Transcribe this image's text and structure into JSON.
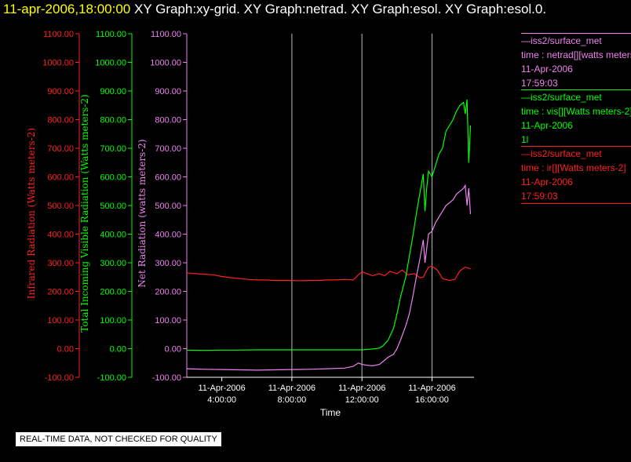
{
  "title": {
    "timestamp": "11-apr-2006,18:00:00",
    "graphs": "XY Graph:xy-grid.  XY Graph:netrad.  XY Graph:esol.  XY Graph:esol.0."
  },
  "colors": {
    "ir": "#ff2020",
    "vis": "#00ff00",
    "net": "#ee82ee",
    "axis": "#ffffff",
    "grid": "#bbbbbb"
  },
  "legend": [
    {
      "source": "—iss2/surface_met",
      "var": "time : netrad[][watts meters-2]",
      "date": "11-Apr-2006",
      "time": "17:59:03",
      "color": "#ee82ee"
    },
    {
      "source": "—iss2/surface_met",
      "var": "time : vis[][Watts meters-2]",
      "date": "11-Apr-2006",
      "time": "1l",
      "color": "#00ff00"
    },
    {
      "source": "—iss2/surface_met",
      "var": "time : ir[][Watts meters-2]",
      "date": "11-Apr-2006",
      "time": "17:59:03",
      "color": "#ff2020"
    }
  ],
  "footer": "REAL-TIME DATA, NOT CHECKED FOR QUALITY",
  "chart_data": {
    "type": "line",
    "title": "",
    "xlabel": "Time",
    "x_ticks": [
      {
        "date": "11-Apr-2006",
        "time": "4:00:00"
      },
      {
        "date": "11-Apr-2006",
        "time": "8:00:00"
      },
      {
        "date": "11-Apr-2006",
        "time": "12:00:00"
      },
      {
        "date": "11-Apr-2006",
        "time": "16:00:00"
      }
    ],
    "xlim_hours": [
      2,
      18.4
    ],
    "grid_x_hours": [
      8,
      12,
      16
    ],
    "y_axes": [
      {
        "id": "ir",
        "label": "Infrared Radiation (Watts meters-2)",
        "color": "#ff2020",
        "ylim": [
          -100,
          1100
        ],
        "ticks": [
          "1100.00",
          "1000.00",
          "900.00",
          "800.00",
          "700.00",
          "600.00",
          "500.00",
          "400.00",
          "300.00",
          "200.00",
          "100.00",
          "0.00",
          "-100.00"
        ]
      },
      {
        "id": "vis",
        "label": "Total Incoming Visible Radiation (Watts meters-2)",
        "color": "#00ff00",
        "ylim": [
          -100,
          1100
        ],
        "ticks": [
          "1100.00",
          "1000.00",
          "900.00",
          "800.00",
          "700.00",
          "600.00",
          "500.00",
          "400.00",
          "300.00",
          "200.00",
          "100.00",
          "0.00",
          "-100.00"
        ]
      },
      {
        "id": "net",
        "label": "Net Radiation (watts meters-2)",
        "color": "#ee82ee",
        "ylim": [
          -100,
          1100
        ],
        "ticks": [
          "1100.00",
          "1000.00",
          "900.00",
          "800.00",
          "700.00",
          "600.00",
          "500.00",
          "400.00",
          "300.00",
          "200.00",
          "100.00",
          "0.00",
          "-100.00"
        ]
      }
    ],
    "series": [
      {
        "name": "ir",
        "color": "#ff2020",
        "x": [
          2,
          2.5,
          3,
          3.5,
          4,
          4.5,
          5,
          5.5,
          6,
          6.5,
          7,
          7.5,
          8,
          8.5,
          9,
          9.5,
          10,
          10.5,
          11,
          11.5,
          11.8,
          12,
          12.3,
          12.6,
          13,
          13.3,
          13.6,
          14,
          14.3,
          14.6,
          15,
          15.3,
          15.5,
          15.8,
          16,
          16.3,
          16.6,
          17,
          17.3,
          17.6,
          17.9,
          18.2
        ],
        "y": [
          265,
          262,
          260,
          258,
          252,
          248,
          245,
          242,
          240,
          240,
          238,
          238,
          238,
          237,
          238,
          238,
          240,
          240,
          242,
          240,
          258,
          268,
          262,
          255,
          262,
          255,
          270,
          262,
          275,
          258,
          262,
          248,
          250,
          285,
          288,
          275,
          245,
          238,
          242,
          272,
          285,
          278
        ]
      },
      {
        "name": "vis",
        "color": "#00ff00",
        "x": [
          2,
          3,
          4,
          5,
          6,
          7,
          8,
          9,
          10,
          11,
          12,
          12.5,
          13,
          13.2,
          13.5,
          13.8,
          14,
          14.2,
          14.5,
          14.7,
          14.9,
          15.1,
          15.3,
          15.5,
          15.6,
          15.7,
          15.8,
          16,
          16.2,
          16.4,
          16.6,
          16.8,
          17,
          17.2,
          17.4,
          17.6,
          17.8,
          17.9,
          18,
          18.1,
          18.2
        ],
        "y": [
          -5,
          -6,
          -5,
          -5,
          -4,
          -4,
          -4,
          -4,
          -4,
          -4,
          -4,
          -2,
          2,
          10,
          30,
          70,
          120,
          180,
          250,
          320,
          390,
          470,
          540,
          610,
          480,
          560,
          620,
          600,
          640,
          680,
          700,
          760,
          780,
          800,
          830,
          850,
          860,
          820,
          870,
          650,
          780
        ]
      },
      {
        "name": "net",
        "color": "#ee82ee",
        "x": [
          2,
          3,
          4,
          5,
          6,
          7,
          8,
          9,
          10,
          11,
          11.5,
          11.8,
          12,
          12.3,
          12.6,
          13,
          13.3,
          13.5,
          13.8,
          14,
          14.2,
          14.5,
          14.7,
          14.9,
          15.1,
          15.3,
          15.5,
          15.6,
          15.7,
          15.8,
          16,
          16.2,
          16.4,
          16.6,
          16.8,
          17,
          17.2,
          17.4,
          17.6,
          17.8,
          17.9,
          18,
          18.1,
          18.2
        ],
        "y": [
          -70,
          -72,
          -73,
          -74,
          -75,
          -74,
          -73,
          -72,
          -70,
          -68,
          -62,
          -50,
          -55,
          -58,
          -60,
          -55,
          -40,
          -30,
          -20,
          0,
          30,
          80,
          120,
          180,
          250,
          310,
          380,
          300,
          350,
          400,
          410,
          440,
          460,
          480,
          500,
          510,
          520,
          540,
          550,
          560,
          570,
          500,
          560,
          470
        ]
      }
    ]
  }
}
